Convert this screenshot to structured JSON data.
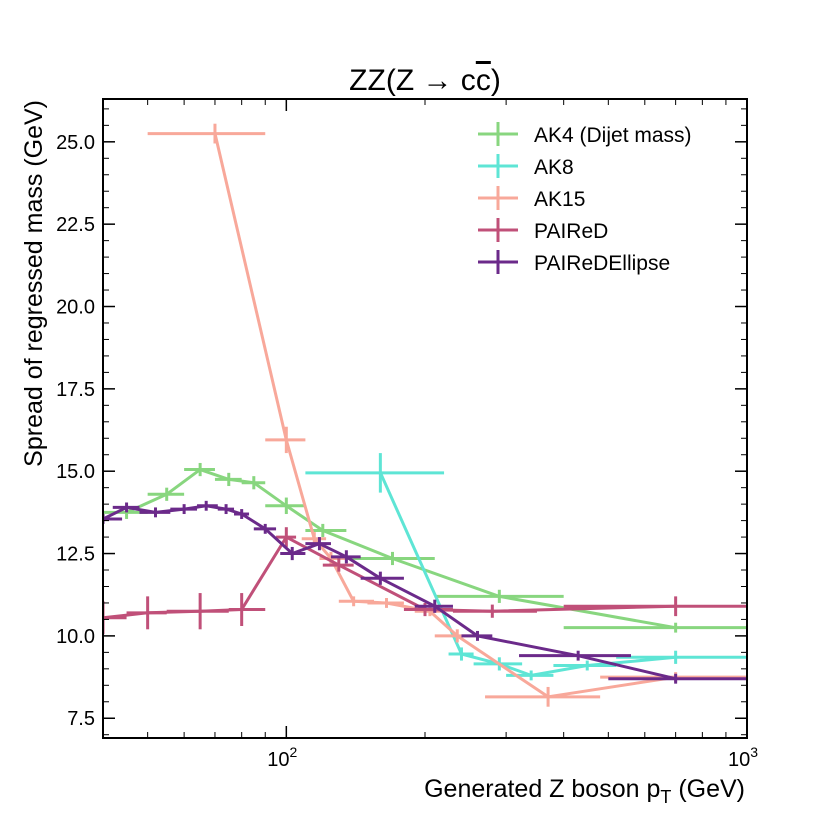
{
  "chart_data": {
    "type": "line",
    "title_main": "ZZ(Z → c",
    "title_c": "c",
    "title_close": ")",
    "xlabel": "Generated Z boson p",
    "xlabel_sub": "T",
    "xlabel_unit": " (GeV)",
    "ylabel": "Spread of regressed mass (GeV)",
    "x_scale": "log",
    "xlim": [
      40,
      1000
    ],
    "ylim": [
      6.9,
      26.3
    ],
    "x_ticks": [
      {
        "value": 100,
        "base": "10",
        "exp": "2"
      },
      {
        "value": 1000,
        "base": "10",
        "exp": "3"
      }
    ],
    "y_ticks": [
      7.5,
      10.0,
      12.5,
      15.0,
      17.5,
      20.0,
      22.5,
      25.0
    ],
    "y_tick_labels": [
      "7.5",
      "10.0",
      "12.5",
      "15.0",
      "17.5",
      "20.0",
      "22.5",
      "25.0"
    ],
    "grid": false,
    "legend_position": "top-right",
    "series": [
      {
        "name": "AK4 (Dijet mass)",
        "color": "#88d67f",
        "points": [
          {
            "x": 45,
            "xlo": 40,
            "xhi": 50,
            "y": 13.75,
            "yerr": 0.2
          },
          {
            "x": 55,
            "xlo": 50,
            "xhi": 60,
            "y": 14.3,
            "yerr": 0.2
          },
          {
            "x": 65,
            "xlo": 60,
            "xhi": 70,
            "y": 15.05,
            "yerr": 0.2
          },
          {
            "x": 75,
            "xlo": 70,
            "xhi": 80,
            "y": 14.75,
            "yerr": 0.2
          },
          {
            "x": 85,
            "xlo": 80,
            "xhi": 90,
            "y": 14.65,
            "yerr": 0.2
          },
          {
            "x": 100,
            "xlo": 90,
            "xhi": 110,
            "y": 13.95,
            "yerr": 0.25
          },
          {
            "x": 120,
            "xlo": 110,
            "xhi": 135,
            "y": 13.2,
            "yerr": 0.2
          },
          {
            "x": 170,
            "xlo": 135,
            "xhi": 210,
            "y": 12.35,
            "yerr": 0.2
          },
          {
            "x": 290,
            "xlo": 210,
            "xhi": 400,
            "y": 11.2,
            "yerr": 0.2
          },
          {
            "x": 700,
            "xlo": 400,
            "xhi": 1000,
            "y": 10.25,
            "yerr": 0.15
          }
        ]
      },
      {
        "name": "AK8",
        "color": "#5ee5d5",
        "points": [
          {
            "x": 160,
            "xlo": 110,
            "xhi": 220,
            "y": 14.95,
            "yerr": 0.6
          },
          {
            "x": 240,
            "xlo": 225,
            "xhi": 255,
            "y": 9.45,
            "yerr": 0.2
          },
          {
            "x": 290,
            "xlo": 255,
            "xhi": 325,
            "y": 9.15,
            "yerr": 0.2
          },
          {
            "x": 340,
            "xlo": 300,
            "xhi": 380,
            "y": 8.8,
            "yerr": 0.15
          },
          {
            "x": 450,
            "xlo": 380,
            "xhi": 520,
            "y": 9.1,
            "yerr": 0.15
          },
          {
            "x": 700,
            "xlo": 520,
            "xhi": 1000,
            "y": 9.35,
            "yerr": 0.2
          }
        ]
      },
      {
        "name": "AK15",
        "color": "#f8a89a",
        "points": [
          {
            "x": 70,
            "xlo": 50,
            "xhi": 90,
            "y": 25.25,
            "yerr": 0.3
          },
          {
            "x": 100,
            "xlo": 90,
            "xhi": 110,
            "y": 15.95,
            "yerr": 0.4
          },
          {
            "x": 115,
            "xlo": 108,
            "xhi": 122,
            "y": 12.95,
            "yerr": 0.2
          },
          {
            "x": 125,
            "xlo": 118,
            "xhi": 135,
            "y": 12.35,
            "yerr": 0.2
          },
          {
            "x": 140,
            "xlo": 130,
            "xhi": 155,
            "y": 11.05,
            "yerr": 0.15
          },
          {
            "x": 165,
            "xlo": 150,
            "xhi": 180,
            "y": 11.0,
            "yerr": 0.15
          },
          {
            "x": 205,
            "xlo": 190,
            "xhi": 220,
            "y": 10.75,
            "yerr": 0.15
          },
          {
            "x": 235,
            "xlo": 210,
            "xhi": 260,
            "y": 10.0,
            "yerr": 0.2
          },
          {
            "x": 370,
            "xlo": 270,
            "xhi": 480,
            "y": 8.15,
            "yerr": 0.3
          },
          {
            "x": 700,
            "xlo": 480,
            "xhi": 1000,
            "y": 8.75,
            "yerr": 0.15
          }
        ]
      },
      {
        "name": "PAIReD",
        "color": "#c05079",
        "points": [
          {
            "x": 40,
            "xlo": 35,
            "xhi": 45,
            "y": 10.55,
            "yerr": 0.5
          },
          {
            "x": 50,
            "xlo": 45,
            "xhi": 55,
            "y": 10.7,
            "yerr": 0.5
          },
          {
            "x": 65,
            "xlo": 55,
            "xhi": 75,
            "y": 10.75,
            "yerr": 0.55
          },
          {
            "x": 80,
            "xlo": 75,
            "xhi": 90,
            "y": 10.8,
            "yerr": 0.5
          },
          {
            "x": 100,
            "xlo": 95,
            "xhi": 105,
            "y": 13.0,
            "yerr": 0.3
          },
          {
            "x": 130,
            "xlo": 120,
            "xhi": 140,
            "y": 12.15,
            "yerr": 0.2
          },
          {
            "x": 200,
            "xlo": 180,
            "xhi": 230,
            "y": 10.8,
            "yerr": 0.2
          },
          {
            "x": 280,
            "xlo": 230,
            "xhi": 350,
            "y": 10.75,
            "yerr": 0.2
          },
          {
            "x": 700,
            "xlo": 400,
            "xhi": 1000,
            "y": 10.9,
            "yerr": 0.3
          }
        ]
      },
      {
        "name": "PAIReDEllipse",
        "color": "#6b2a8a",
        "points": [
          {
            "x": 40,
            "xlo": 36,
            "xhi": 44,
            "y": 13.55,
            "yerr": 0.15
          },
          {
            "x": 45,
            "xlo": 42,
            "xhi": 48,
            "y": 13.9,
            "yerr": 0.15
          },
          {
            "x": 52,
            "xlo": 48,
            "xhi": 56,
            "y": 13.75,
            "yerr": 0.15
          },
          {
            "x": 60,
            "xlo": 56,
            "xhi": 64,
            "y": 13.85,
            "yerr": 0.15
          },
          {
            "x": 67,
            "xlo": 64,
            "xhi": 71,
            "y": 13.95,
            "yerr": 0.15
          },
          {
            "x": 74,
            "xlo": 71,
            "xhi": 77,
            "y": 13.85,
            "yerr": 0.15
          },
          {
            "x": 80,
            "xlo": 77,
            "xhi": 83,
            "y": 13.7,
            "yerr": 0.15
          },
          {
            "x": 90,
            "xlo": 85,
            "xhi": 95,
            "y": 13.25,
            "yerr": 0.15
          },
          {
            "x": 103,
            "xlo": 97,
            "xhi": 110,
            "y": 12.5,
            "yerr": 0.2
          },
          {
            "x": 118,
            "xlo": 110,
            "xhi": 125,
            "y": 12.8,
            "yerr": 0.2
          },
          {
            "x": 135,
            "xlo": 125,
            "xhi": 145,
            "y": 12.4,
            "yerr": 0.2
          },
          {
            "x": 160,
            "xlo": 145,
            "xhi": 180,
            "y": 11.75,
            "yerr": 0.2
          },
          {
            "x": 210,
            "xlo": 190,
            "xhi": 230,
            "y": 10.9,
            "yerr": 0.2
          },
          {
            "x": 260,
            "xlo": 240,
            "xhi": 280,
            "y": 10.0,
            "yerr": 0.15
          },
          {
            "x": 430,
            "xlo": 320,
            "xhi": 560,
            "y": 9.4,
            "yerr": 0.15
          },
          {
            "x": 700,
            "xlo": 500,
            "xhi": 1000,
            "y": 8.7,
            "yerr": 0.15
          }
        ]
      }
    ]
  }
}
